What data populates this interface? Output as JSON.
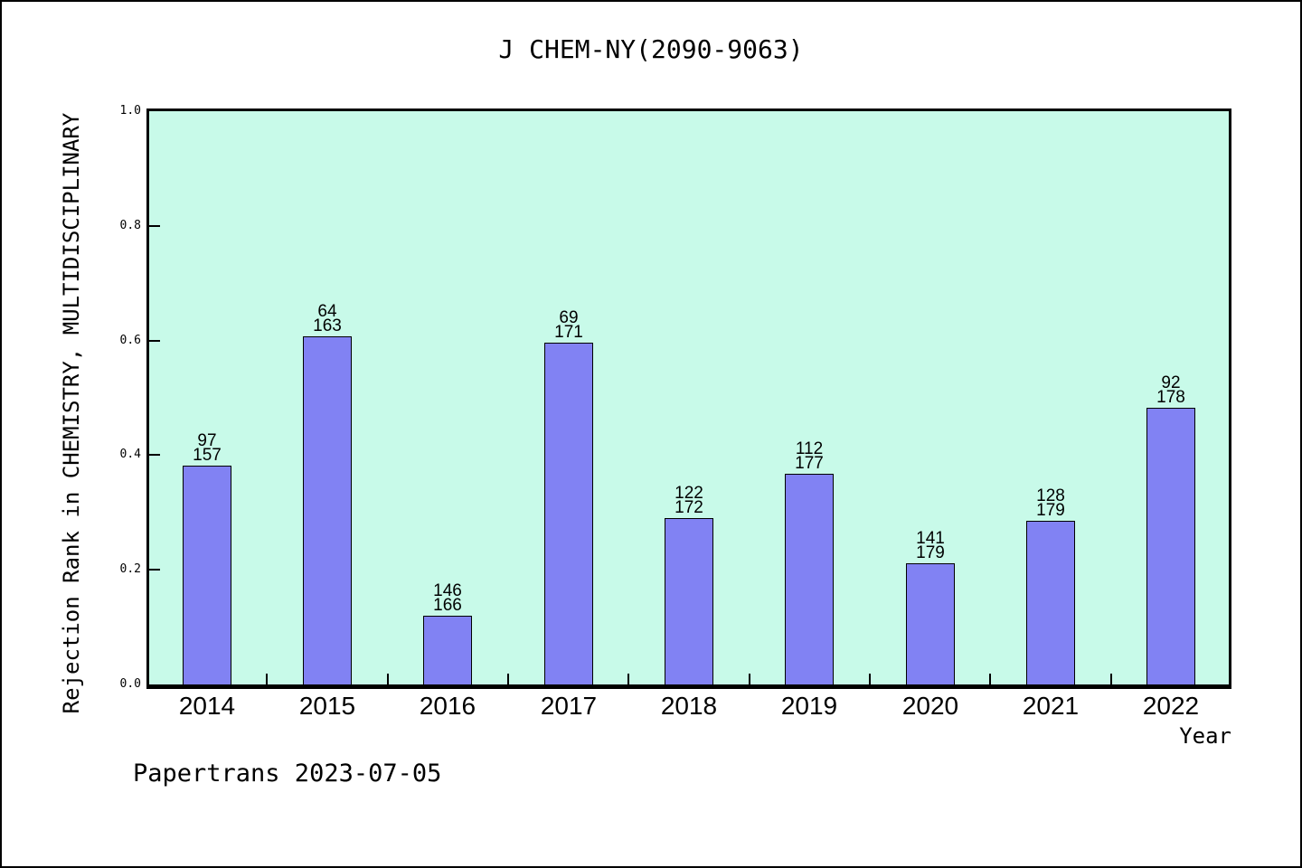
{
  "header": {
    "title": "J CHEM-NY(2090-9063)"
  },
  "footer": {
    "note": "Papertrans 2023-07-05"
  },
  "colors": {
    "plot_background": "#c8fae9",
    "bar_fill": "#8182f3",
    "bar_border": "#000000",
    "frame": "#000000",
    "text": "#000000"
  },
  "chart_data": {
    "type": "bar",
    "title": "J CHEM-NY(2090-9063)",
    "xlabel": "Year",
    "ylabel": "Rejection Rank in CHEMISTRY, MULTIDISCIPLINARY",
    "ylim": [
      0.0,
      1.0
    ],
    "grid": false,
    "legend": "none",
    "background": "#c8fae9",
    "categories": [
      "2014",
      "2015",
      "2016",
      "2017",
      "2018",
      "2019",
      "2020",
      "2021",
      "2022"
    ],
    "values": [
      0.382,
      0.607,
      0.12,
      0.596,
      0.291,
      0.367,
      0.212,
      0.285,
      0.483
    ],
    "bar_annotations": [
      {
        "rank": "97",
        "total": "157"
      },
      {
        "rank": "64",
        "total": "163"
      },
      {
        "rank": "146",
        "total": "166"
      },
      {
        "rank": "69",
        "total": "171"
      },
      {
        "rank": "122",
        "total": "172"
      },
      {
        "rank": "112",
        "total": "177"
      },
      {
        "rank": "141",
        "total": "179"
      },
      {
        "rank": "128",
        "total": "179"
      },
      {
        "rank": "92",
        "total": "178"
      }
    ],
    "y_ticks": [
      {
        "label": "1.0",
        "value": 1.0
      },
      {
        "label": "0.8",
        "value": 0.8
      },
      {
        "label": "0.6",
        "value": 0.6
      },
      {
        "label": "0.4",
        "value": 0.4
      },
      {
        "label": "0.2",
        "value": 0.2
      },
      {
        "label": "0.0",
        "value": 0.0
      }
    ]
  }
}
